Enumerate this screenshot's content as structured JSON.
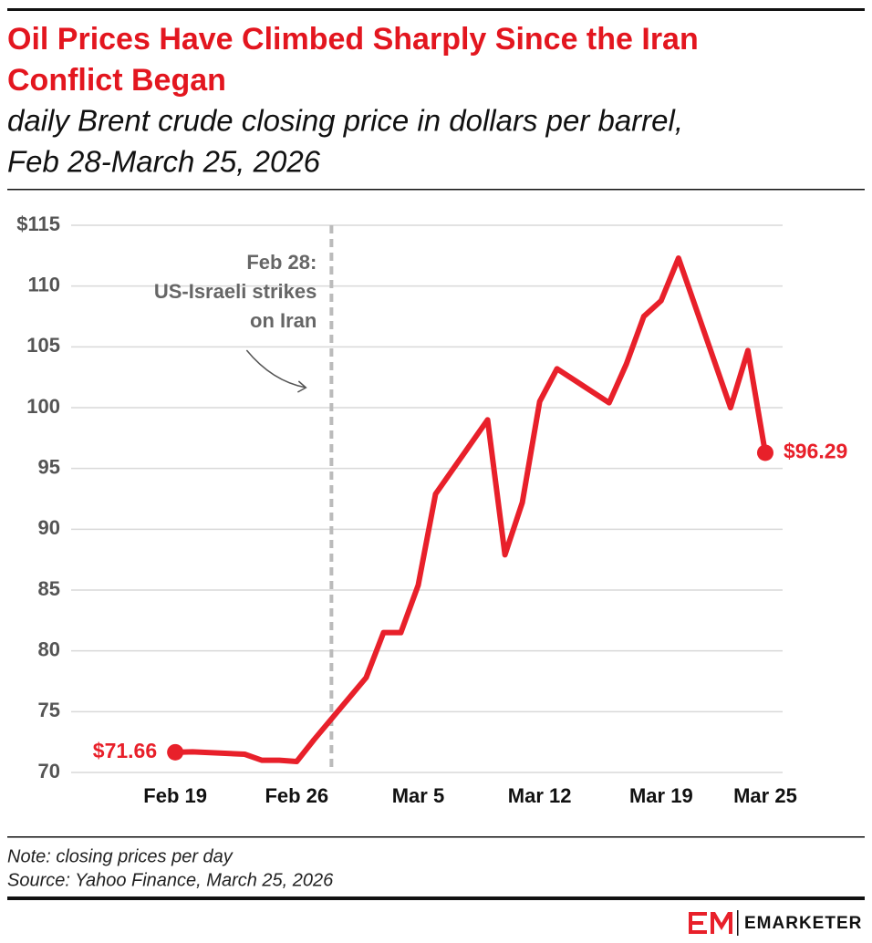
{
  "chart_data": {
    "type": "line",
    "title_lines": [
      "Oil Prices Have Climbed Sharply Since the Iran",
      "Conflict Began"
    ],
    "subtitle_lines": [
      "daily Brent crude closing price in dollars per barrel,",
      "Feb 28-March 25, 2026"
    ],
    "x": [
      "Feb 19",
      "Feb 20",
      "Feb 23",
      "Feb 24",
      "Feb 25",
      "Feb 26",
      "Feb 27",
      "Mar 2",
      "Mar 3",
      "Mar 4",
      "Mar 5",
      "Mar 6",
      "Mar 9",
      "Mar 10",
      "Mar 11",
      "Mar 12",
      "Mar 13",
      "Mar 16",
      "Mar 17",
      "Mar 18",
      "Mar 19",
      "Mar 20",
      "Mar 23",
      "Mar 24",
      "Mar 25"
    ],
    "values": [
      71.66,
      71.7,
      71.5,
      71.0,
      71.0,
      70.9,
      72.7,
      77.8,
      81.5,
      81.5,
      85.4,
      92.9,
      99.0,
      87.9,
      92.2,
      100.5,
      103.2,
      100.4,
      103.6,
      107.5,
      108.8,
      112.3,
      100.0,
      104.7,
      96.29
    ],
    "value_labels": [
      "$71.66",
      null,
      null,
      null,
      null,
      null,
      null,
      null,
      null,
      null,
      null,
      null,
      null,
      null,
      null,
      null,
      null,
      null,
      null,
      null,
      null,
      null,
      null,
      null,
      "$96.29"
    ],
    "color": "#e8202a",
    "xlim": [
      "Feb 13",
      "Mar 26"
    ],
    "xticks": [
      "Feb 19",
      "Feb 26",
      "Mar 5",
      "Mar 12",
      "Mar 19",
      "Mar 25"
    ],
    "ylim": [
      70,
      115
    ],
    "yticks": [
      70,
      75,
      80,
      85,
      90,
      95,
      100,
      105,
      110,
      {
        "value": 115,
        "label": "$115"
      }
    ],
    "grid": true,
    "annotation": {
      "x": "Feb 28",
      "lines": [
        "Feb 28:",
        "US-Israeli strikes",
        "on Iran"
      ]
    },
    "note": "Note: closing prices per day",
    "source": "Source: Yahoo Finance, March 25, 2026",
    "brand": "EMARKETER"
  }
}
